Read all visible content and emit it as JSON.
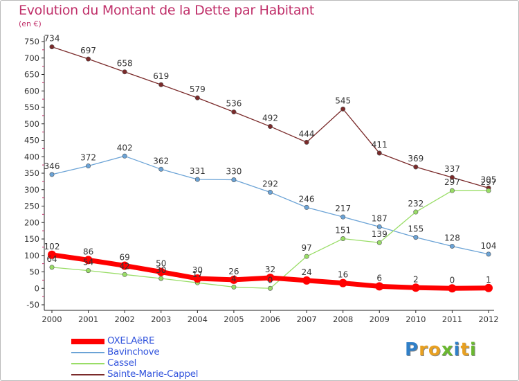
{
  "title": "Evolution du Montant de la Dette par Habitant",
  "subtitle": "(en €)",
  "chart_data": {
    "type": "line",
    "title": "Evolution du Montant de la Dette par Habitant",
    "ylabel": "(en €)",
    "categories": [
      "2000",
      "2001",
      "2002",
      "2003",
      "2004",
      "2005",
      "2006",
      "2007",
      "2008",
      "2009",
      "2010",
      "2011",
      "2012"
    ],
    "ylim": [
      -50,
      750
    ],
    "yticks": [
      "-50",
      "0",
      "50",
      "100",
      "150",
      "200",
      "250",
      "300",
      "350",
      "400",
      "450",
      "500",
      "550",
      "600",
      "650",
      "700",
      "750"
    ],
    "grid": false,
    "legend_position": "bottom-left",
    "series": [
      {
        "name": "OXELAëRE",
        "color": "#ff0000",
        "values": [
          102,
          86,
          69,
          50,
          30,
          26,
          32,
          24,
          16,
          6,
          2,
          0,
          1
        ],
        "labels": [
          "102",
          "86",
          "69",
          "50",
          "30",
          "26",
          "32",
          "24",
          "16",
          "6",
          "2",
          "0",
          "1"
        ]
      },
      {
        "name": "Bavinchove",
        "color": "#6ba3d6",
        "values": [
          346,
          372,
          402,
          362,
          331,
          330,
          292,
          246,
          217,
          187,
          155,
          128,
          104
        ],
        "labels": [
          "346",
          "372",
          "402",
          "362",
          "331",
          "330",
          "292",
          "246",
          "217",
          "187",
          "155",
          "128",
          "104"
        ]
      },
      {
        "name": "Cassel",
        "color": "#99dd66",
        "values": [
          64,
          54,
          42,
          30,
          17,
          4,
          0,
          97,
          151,
          139,
          232,
          297,
          297
        ],
        "labels": [
          "64",
          "54",
          "42",
          "30",
          "17",
          "4",
          "0",
          "97",
          "151",
          "139",
          "232",
          "297",
          "297"
        ]
      },
      {
        "name": "Sainte-Marie-Cappel",
        "color": "#7a2a2a",
        "values": [
          734,
          697,
          658,
          619,
          579,
          536,
          492,
          444,
          545,
          411,
          369,
          337,
          305
        ],
        "labels": [
          "734",
          "697",
          "658",
          "619",
          "579",
          "536",
          "492",
          "444",
          "545",
          "411",
          "369",
          "337",
          "305"
        ]
      }
    ]
  },
  "logo": {
    "letters": [
      "P",
      "r",
      "o",
      "x",
      "i",
      "t",
      "i"
    ],
    "colors": [
      "#2f7fc8",
      "#e8a020",
      "#e8a020",
      "#6ab830",
      "#2f7fc8",
      "#e8a020",
      "#6ab830"
    ]
  }
}
